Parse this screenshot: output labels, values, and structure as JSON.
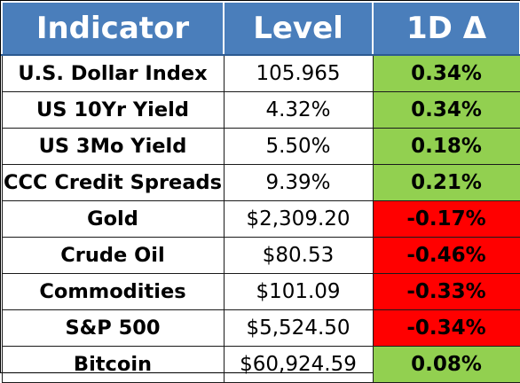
{
  "header": {
    "indicator": "Indicator",
    "level": "Level",
    "change": "1D Δ"
  },
  "colors": {
    "header_bg": "#4a7ebb",
    "positive": "#92d050",
    "negative": "#ff0000"
  },
  "rows": [
    {
      "name": "U.S. Dollar Index",
      "level": "105.965",
      "change": "0.34%",
      "direction": "up"
    },
    {
      "name": "US 10Yr Yield",
      "level": "4.32%",
      "change": "0.34%",
      "direction": "up"
    },
    {
      "name": "US 3Mo Yield",
      "level": "5.50%",
      "change": "0.18%",
      "direction": "up"
    },
    {
      "name": "CCC Credit Spreads",
      "level": "9.39%",
      "change": "0.21%",
      "direction": "up"
    },
    {
      "name": "Gold",
      "level": "$2,309.20",
      "change": "-0.17%",
      "direction": "down"
    },
    {
      "name": "Crude Oil",
      "level": "$80.53",
      "change": "-0.46%",
      "direction": "down"
    },
    {
      "name": "Commodities",
      "level": "$101.09",
      "change": "-0.33%",
      "direction": "down"
    },
    {
      "name": "S&P 500",
      "level": "$5,524.50",
      "change": "-0.34%",
      "direction": "down"
    },
    {
      "name": "Bitcoin",
      "level": "$60,924.59",
      "change": "0.08%",
      "direction": "up"
    }
  ]
}
